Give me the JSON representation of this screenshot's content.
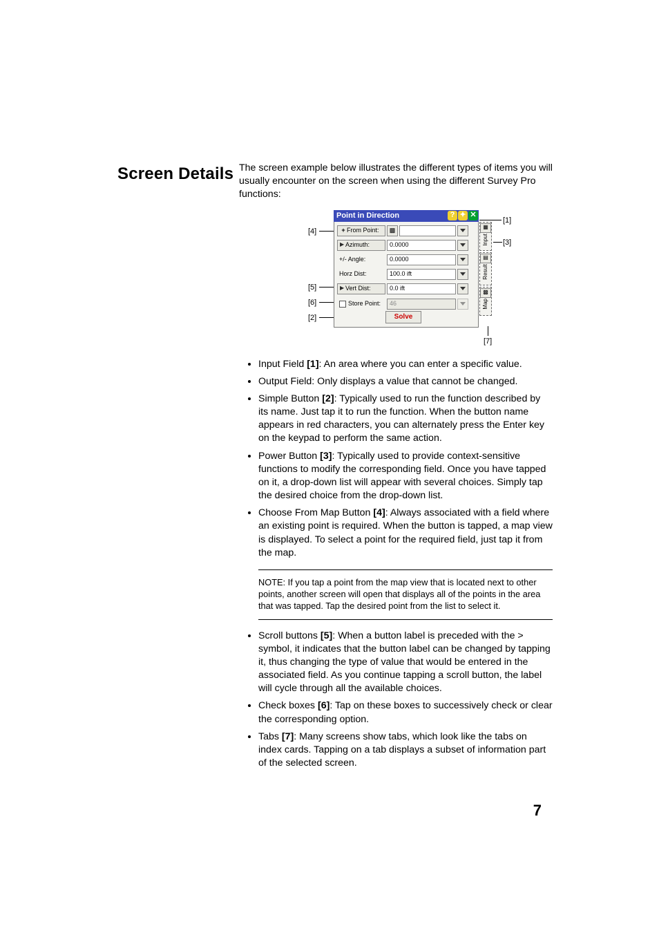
{
  "section_title": "Screen Details",
  "intro": "The screen example below illustrates the different types of items you will usually encounter on the screen when using the different Survey Pro functions:",
  "device": {
    "title": "Point in Direction",
    "rows": {
      "from_point_label": "From Point:",
      "azimuth_label": "Azimuth:",
      "azimuth_value": "0.0000",
      "angle_label": "+/- Angle:",
      "angle_value": "0.0000",
      "horz_label": "Horz Dist:",
      "horz_value": "100.0 ift",
      "vert_label": "Vert Dist:",
      "vert_value": "0.0 ift",
      "store_label": "Store Point:",
      "store_value": "46"
    },
    "solve_label": "Solve",
    "tabs": {
      "input": "Input",
      "result": "Result",
      "map": "Map"
    }
  },
  "callouts": {
    "c1": "[1]",
    "c2": "[2]",
    "c3": "[3]",
    "c4": "[4]",
    "c5": "[5]",
    "c6": "[6]",
    "c7": "[7]"
  },
  "bullets1": [
    {
      "lead": "Input Field ",
      "tag": "[1]",
      "rest": ": An area where you can enter a specific value."
    },
    {
      "lead": "Output Field",
      "tag": "",
      "rest": ": Only displays a value that cannot be changed."
    },
    {
      "lead": "Simple Button ",
      "tag": "[2]",
      "rest": ": Typically used to run the function described by its name. Just tap it to run the function. When the button name appears in red characters, you can alternately press the Enter key on the keypad to perform the same action."
    },
    {
      "lead": "Power Button ",
      "tag": "[3]",
      "rest": ": Typically used to provide context-sensitive functions to modify the corresponding field. Once you have tapped on it, a drop-down list will appear with several choices. Simply tap the desired choice from the drop-down list."
    },
    {
      "lead": "Choose From Map Button ",
      "tag": "[4]",
      "rest": ": Always associated with a field where an existing point is required. When the button is tapped, a map view is displayed. To select a point for the required field, just tap it from the map."
    }
  ],
  "note": "NOTE: If you tap a point from the map view that is located next to other points, another screen will open that displays all of the points in the area that was tapped. Tap the desired point from the list to select it.",
  "bullets2": [
    {
      "lead": "Scroll buttons ",
      "tag": "[5]",
      "rest": ": When a button label is preceded with the > symbol, it indicates that the button label can be changed by tapping it, thus changing the type of value that would be entered in the associated field. As you continue tapping a scroll button, the label will cycle through all the available choices."
    },
    {
      "lead": "Check boxes ",
      "tag": "[6]",
      "rest": ": Tap on these boxes to successively check or clear the corresponding option."
    },
    {
      "lead": "Tabs ",
      "tag": "[7]",
      "rest": ": Many screens show tabs, which look like the tabs on index cards. Tapping on a tab displays a subset of information part of the selected screen."
    }
  ],
  "page_number": "7"
}
